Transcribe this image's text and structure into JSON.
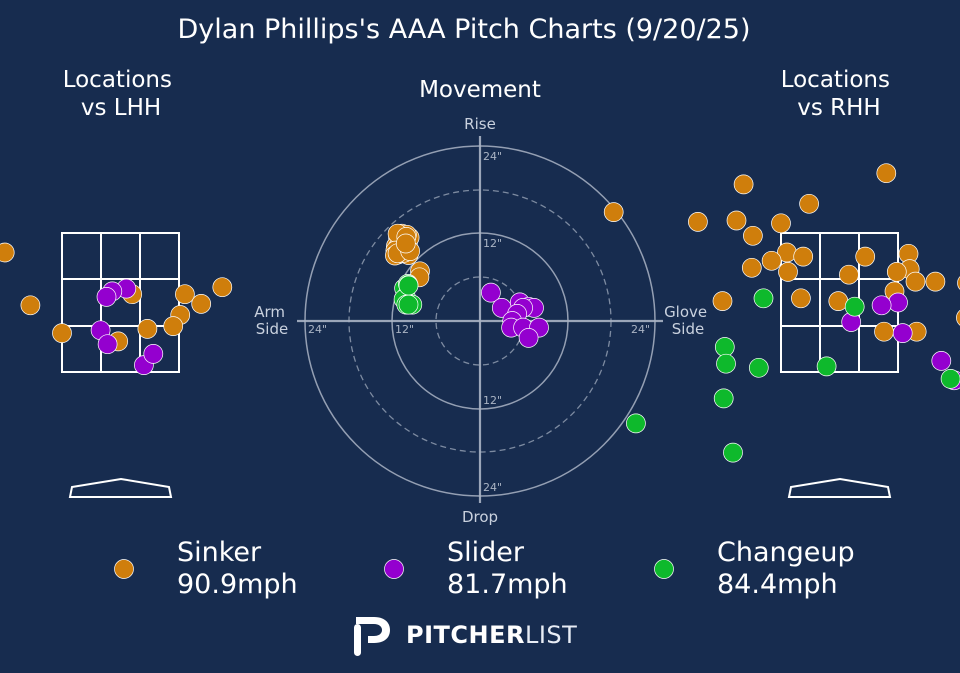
{
  "title": "Dylan Phillips's AAA Pitch Charts (9/20/25)",
  "panels": {
    "lhh_title": [
      "Locations",
      "vs LHH"
    ],
    "movement_title": "Movement",
    "rhh_title": [
      "Locations",
      "vs RHH"
    ]
  },
  "movement_labels": {
    "top": "Rise",
    "bottom": "Drop",
    "left": [
      "Arm",
      "Side"
    ],
    "right": [
      "Glove",
      "Side"
    ]
  },
  "ring_labels": {
    "top_outer": "24\"",
    "top_inner": "12\"",
    "bottom_inner": "12\"",
    "bottom_outer": "24\"",
    "left_outer": "24\"",
    "left_inner": "12\"",
    "right_outer": "24\""
  },
  "colors": {
    "background": "#172c4f",
    "sinker": "#cf7e0c",
    "slider": "#9400cf",
    "changeup": "#0eb92c",
    "grid": "#aab4c4"
  },
  "legend": [
    {
      "key": "sinker",
      "name": "Sinker",
      "velo": "90.9mph"
    },
    {
      "key": "slider",
      "name": "Slider",
      "velo": "81.7mph"
    },
    {
      "key": "changeup",
      "name": "Changeup",
      "velo": "84.4mph"
    }
  ],
  "logo": {
    "bold": "PITCHER",
    "light": "LIST"
  },
  "chart_data": [
    {
      "type": "scatter",
      "name": "locations_lhh",
      "units": "zone widths from zone center (x), zone heights from zone center (y)",
      "series": [
        {
          "key": "sinker",
          "points": [
            [
              -0.99,
              0.36
            ],
            [
              -0.77,
              -0.02
            ],
            [
              -0.5,
              -0.22
            ],
            [
              0.1,
              0.06
            ],
            [
              0.55,
              0.06
            ],
            [
              0.69,
              -0.01
            ],
            [
              0.51,
              -0.09
            ],
            [
              0.45,
              -0.17
            ],
            [
              0.87,
              0.11
            ],
            [
              -0.02,
              -0.28
            ],
            [
              0.23,
              -0.19
            ]
          ]
        },
        {
          "key": "slider",
          "points": [
            [
              0.05,
              0.1
            ],
            [
              -0.17,
              -0.2
            ],
            [
              -0.11,
              -0.3
            ],
            [
              -0.07,
              0.08
            ],
            [
              -0.12,
              0.04
            ],
            [
              0.2,
              -0.45
            ],
            [
              0.28,
              -0.37
            ]
          ]
        },
        {
          "key": "changeup",
          "points": []
        }
      ]
    },
    {
      "type": "scatter",
      "name": "movement",
      "units": "inches (x: arm side negative, glove side positive; y: rise positive)",
      "xlim": [
        -24,
        24
      ],
      "ylim": [
        -24,
        24
      ],
      "series": [
        {
          "key": "sinker",
          "points": [
            [
              -15.0,
              15.2
            ],
            [
              -14.7,
              14.8
            ],
            [
              -14.0,
              14.5
            ],
            [
              -15.4,
              13.7
            ],
            [
              -15.0,
              13.6
            ],
            [
              -14.0,
              13.5
            ],
            [
              -13.2,
              14.3
            ],
            [
              -14.2,
              13.6
            ],
            [
              -12.9,
              15.3
            ],
            [
              -14.0,
              15.1
            ],
            [
              -14.3,
              16.0
            ],
            [
              -13.4,
              15.8
            ],
            [
              -15.1,
              16.0
            ],
            [
              -15.5,
              12.9
            ],
            [
              -15.0,
              12.2
            ],
            [
              -14.8,
              12.5
            ],
            [
              -15.6,
              12.0
            ],
            [
              -13.1,
              12.1
            ],
            [
              -13.9,
              12.5
            ],
            [
              -11.0,
              9.1
            ],
            [
              -11.1,
              8.0
            ],
            [
              -15.1,
              12.4
            ],
            [
              -12.8,
              12.8
            ],
            [
              -13.5,
              15.4
            ],
            [
              -13.6,
              14.2
            ]
          ]
        },
        {
          "key": "slider",
          "points": [
            [
              2.0,
              5.2
            ],
            [
              4.0,
              2.4
            ],
            [
              7.3,
              3.4
            ],
            [
              8.9,
              2.6
            ],
            [
              9.9,
              2.4
            ],
            [
              7.9,
              2.4
            ],
            [
              6.8,
              1.3
            ],
            [
              5.9,
              0.0
            ],
            [
              5.7,
              -1.2
            ],
            [
              7.9,
              -1.2
            ],
            [
              10.8,
              -1.2
            ],
            [
              8.9,
              -3.1
            ]
          ]
        },
        {
          "key": "changeup",
          "points": [
            [
              -13.9,
              6.0
            ],
            [
              -13.2,
              6.8
            ],
            [
              -13.1,
              6.6
            ],
            [
              -13.6,
              4.4
            ],
            [
              -14.0,
              4.0
            ],
            [
              -13.5,
              3.0
            ],
            [
              -12.4,
              3.0
            ],
            [
              -13.1,
              3.0
            ],
            [
              -13.1,
              6.5
            ]
          ]
        }
      ]
    },
    {
      "type": "scatter",
      "name": "locations_rhh",
      "units": "zone widths from zone center (x), zone heights from zone center (y)",
      "series": [
        {
          "key": "sinker",
          "points": [
            [
              -1.93,
              0.65
            ],
            [
              -0.82,
              0.85
            ],
            [
              -1.21,
              0.58
            ],
            [
              -0.26,
              0.71
            ],
            [
              -0.5,
              0.57
            ],
            [
              -0.88,
              0.59
            ],
            [
              -0.74,
              0.48
            ],
            [
              -0.45,
              0.36
            ],
            [
              -0.58,
              0.3
            ],
            [
              -0.31,
              0.33
            ],
            [
              0.22,
              0.33
            ],
            [
              -0.75,
              0.25
            ],
            [
              -0.44,
              0.22
            ],
            [
              0.08,
              0.2
            ],
            [
              0.59,
              0.35
            ],
            [
              0.6,
              0.24
            ],
            [
              0.65,
              0.15
            ],
            [
              0.82,
              0.15
            ],
            [
              1.09,
              0.14
            ],
            [
              0.49,
              0.22
            ],
            [
              0.47,
              0.08
            ],
            [
              -0.01,
              0.01
            ],
            [
              -0.33,
              0.03
            ],
            [
              -1.0,
              0.01
            ],
            [
              0.38,
              -0.21
            ],
            [
              0.66,
              -0.21
            ],
            [
              1.08,
              -0.11
            ],
            [
              1.12,
              -0.31
            ],
            [
              0.4,
              0.93
            ]
          ]
        },
        {
          "key": "slider",
          "points": [
            [
              0.5,
              0.0
            ],
            [
              0.54,
              -0.22
            ],
            [
              0.1,
              -0.14
            ],
            [
              0.87,
              -0.42
            ],
            [
              0.98,
              -0.56
            ],
            [
              0.36,
              -0.02
            ]
          ]
        },
        {
          "key": "changeup",
          "points": [
            [
              -0.65,
              0.03
            ],
            [
              0.13,
              -0.03
            ],
            [
              -0.98,
              -0.32
            ],
            [
              -0.97,
              -0.44
            ],
            [
              -0.69,
              -0.47
            ],
            [
              -0.11,
              -0.46
            ],
            [
              0.95,
              -0.55
            ],
            [
              -0.99,
              -0.69
            ],
            [
              -1.74,
              -0.87
            ],
            [
              -0.91,
              -1.08
            ]
          ]
        }
      ]
    }
  ]
}
